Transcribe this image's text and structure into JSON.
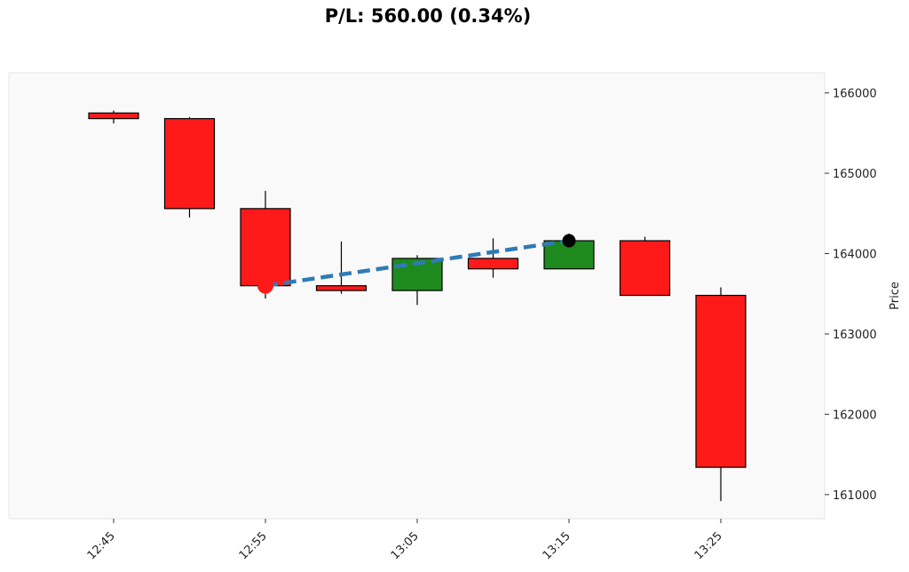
{
  "chart_data": {
    "type": "candlestick",
    "title": "P/L: 560.00 (0.34%)",
    "ylabel": "Price",
    "ylim": [
      160700,
      166250
    ],
    "y_ticks": [
      "161000",
      "162000",
      "163000",
      "164000",
      "165000",
      "166000"
    ],
    "x_ticks": [
      "12:45",
      "12:55",
      "13:05",
      "13:15",
      "13:25"
    ],
    "candles": [
      {
        "time": "12:45",
        "open": 165750,
        "high": 165780,
        "low": 165620,
        "close": 165680
      },
      {
        "time": "12:50",
        "open": 165680,
        "high": 165700,
        "low": 164450,
        "close": 164560
      },
      {
        "time": "12:55",
        "open": 164560,
        "high": 164780,
        "low": 163440,
        "close": 163600
      },
      {
        "time": "13:00",
        "open": 163600,
        "high": 164150,
        "low": 163500,
        "close": 163540
      },
      {
        "time": "13:05",
        "open": 163540,
        "high": 163980,
        "low": 163360,
        "close": 163940
      },
      {
        "time": "13:10",
        "open": 163940,
        "high": 164190,
        "low": 163700,
        "close": 163810
      },
      {
        "time": "13:15",
        "open": 163810,
        "high": 164250,
        "low": 163810,
        "close": 164160
      },
      {
        "time": "13:20",
        "open": 164160,
        "high": 164210,
        "low": 163480,
        "close": 163480
      },
      {
        "time": "13:25",
        "open": 163480,
        "high": 163580,
        "low": 160920,
        "close": 161340
      }
    ],
    "trade": {
      "entry": {
        "time": "12:55",
        "price": 163600
      },
      "exit": {
        "time": "13:15",
        "price": 164160
      }
    },
    "grid": false,
    "colors": {
      "up": "#1e8a1e",
      "down": "#ff1a1a",
      "trade_line": "#2e7bb6",
      "entry_marker": "#ff1a1a",
      "exit_marker": "#000000",
      "plot_bg": "#f9f9f9"
    }
  }
}
